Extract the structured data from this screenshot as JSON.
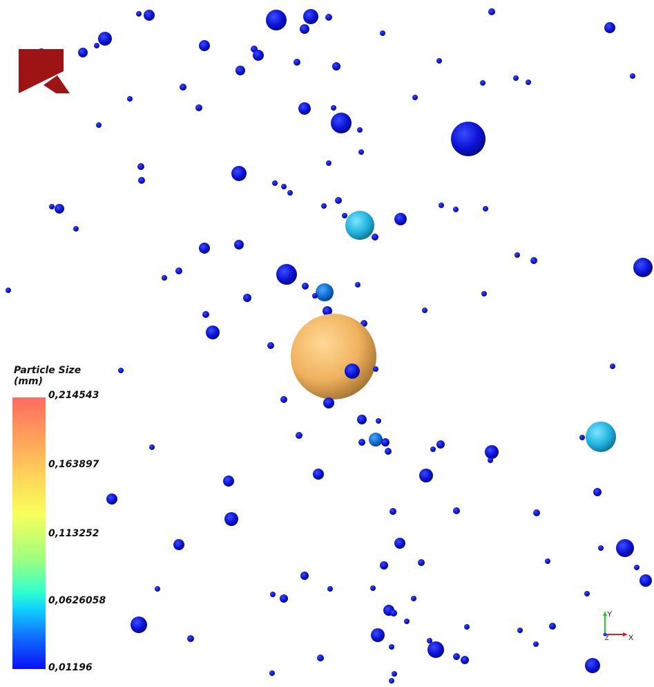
{
  "legend": {
    "title_line1": "Particle Size",
    "title_line2": "(mm)",
    "ticks": [
      "0,214543",
      "0,163897",
      "0,113252",
      "0,0626058",
      "0,01196"
    ],
    "colors": [
      "#ff6b5e",
      "#fdde5a",
      "#2dffcf",
      "#1070ff",
      "#0810f6"
    ]
  },
  "axes": {
    "y_label": "Y",
    "x_label": "X",
    "z_label": "Z"
  },
  "logo": {
    "color": "#9e1414"
  },
  "particle_colors": {
    "small": "#0b0fd6",
    "medium": "#0a6fd8",
    "large_cyan": "#25b8e0",
    "largest": "#f2b660"
  }
}
